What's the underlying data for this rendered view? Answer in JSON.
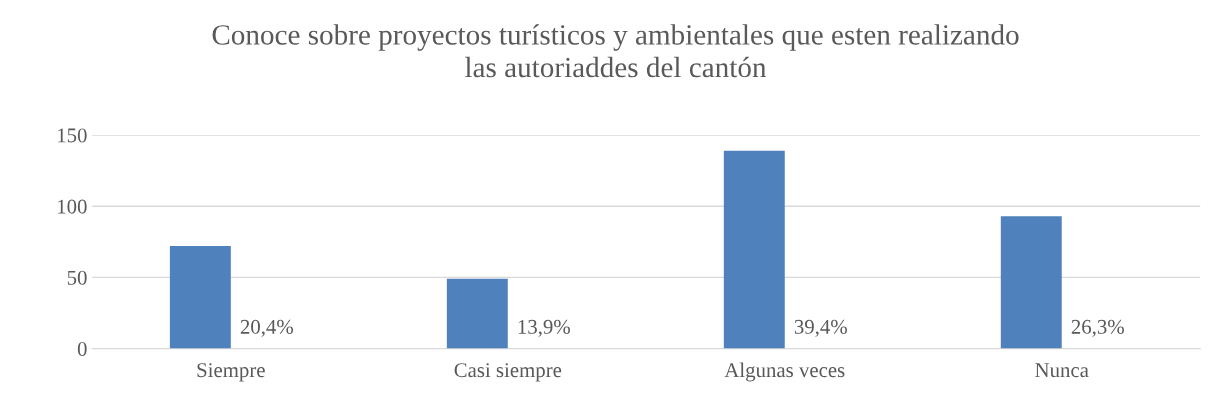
{
  "chart_data": {
    "type": "bar",
    "title": "Conoce sobre proyectos turísticos y ambientales que esten realizando\nlas autoriaddes del cantón",
    "categories": [
      "Siempre",
      "Casi siempre",
      "Algunas veces",
      "Nunca"
    ],
    "values": [
      72,
      49,
      139,
      93
    ],
    "color": "#4f81bd",
    "ylim": [
      0,
      150
    ],
    "yticks": [
      0,
      50,
      100,
      150
    ],
    "grid": "y",
    "annotations": [
      {
        "text": "20,4%",
        "x": "Siempre",
        "y": 0
      },
      {
        "text": "13,9%",
        "x": "Casi siempre",
        "y": 0
      },
      {
        "text": "39,4%",
        "x": "Algunas veces",
        "y": 0
      },
      {
        "text": "26,3%",
        "x": "Nunca",
        "y": 0
      }
    ]
  }
}
